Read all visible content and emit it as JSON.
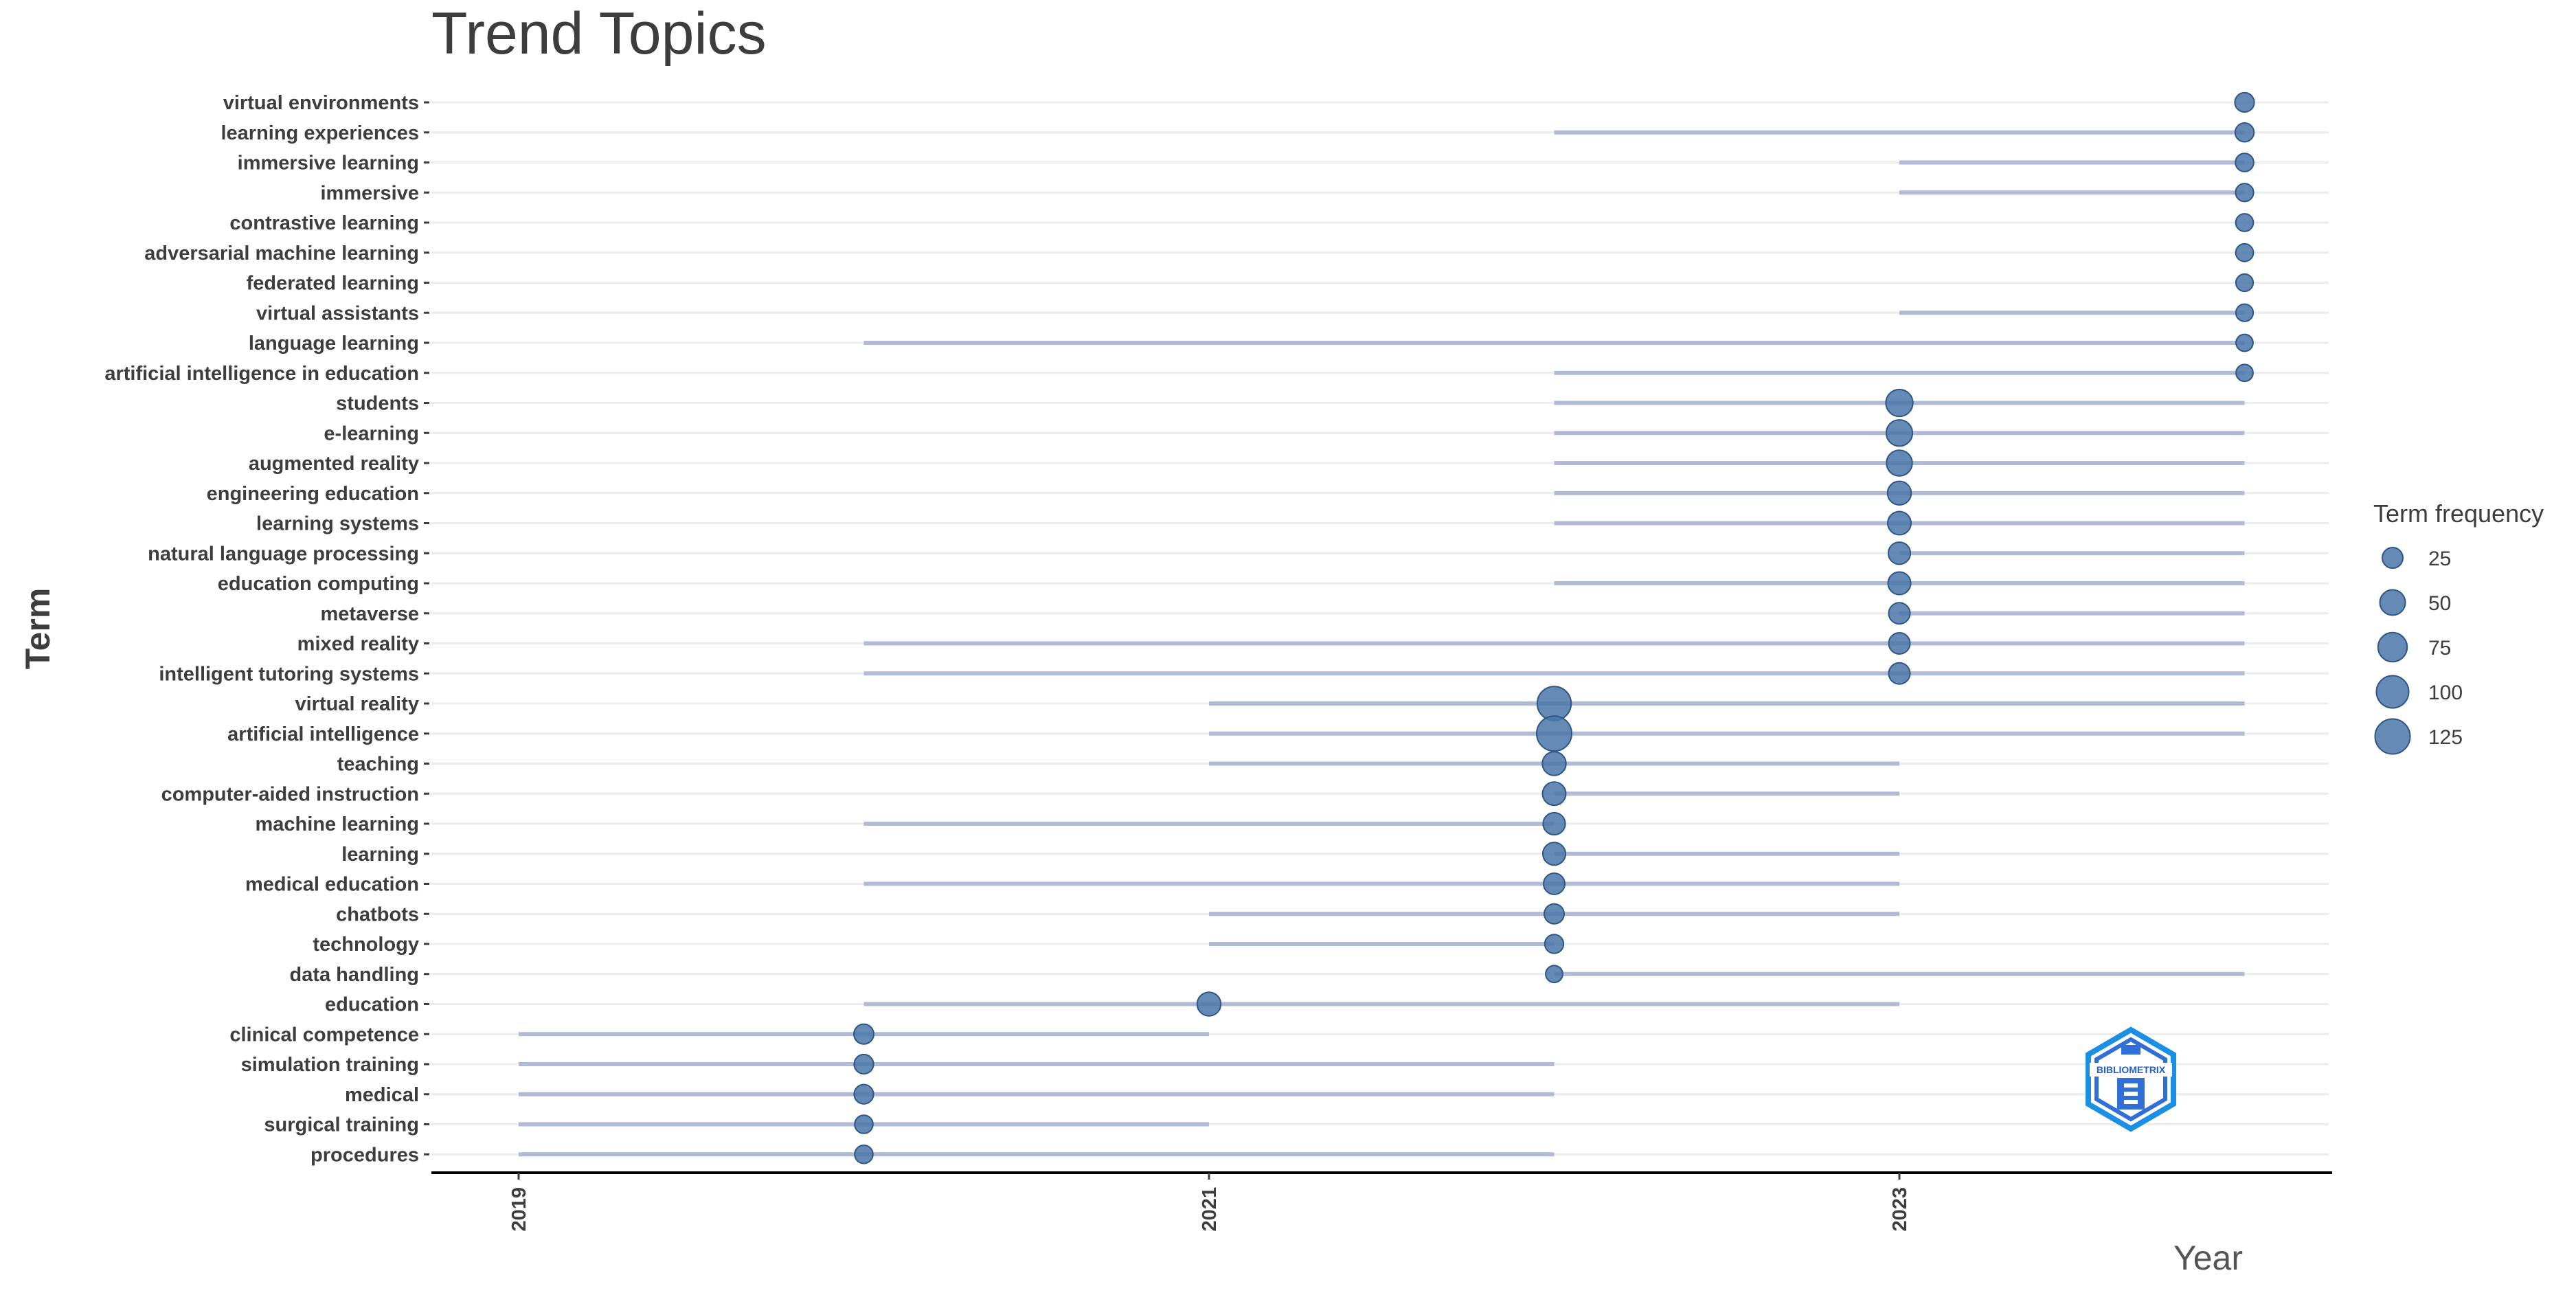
{
  "chart_data": {
    "type": "scatter",
    "title": "Trend Topics",
    "xlabel": "Year",
    "ylabel": "Term",
    "xlim": [
      2019,
      2024.3
    ],
    "x_ticks": [
      "2019",
      "2021",
      "2023"
    ],
    "grid": "horizontal",
    "legend": {
      "title": "Term frequency",
      "position": "right",
      "entries": [
        {
          "label": "25",
          "value": 25
        },
        {
          "label": "50",
          "value": 50
        },
        {
          "label": "75",
          "value": 75
        },
        {
          "label": "100",
          "value": 100
        },
        {
          "label": "125",
          "value": 125
        }
      ]
    },
    "colors": {
      "point": "#4a76a8",
      "point_stroke": "#2f5684",
      "range_line": "#b2bbd6",
      "grid": "#ececec",
      "axis": "#000000"
    },
    "series": [
      {
        "term": "virtual environments",
        "q1": 2024,
        "median": 2024,
        "q3": 2024,
        "freq": 20
      },
      {
        "term": "learning experiences",
        "q1": 2022,
        "median": 2024,
        "q3": 2024,
        "freq": 18
      },
      {
        "term": "immersive learning",
        "q1": 2023,
        "median": 2024,
        "q3": 2024,
        "freq": 16
      },
      {
        "term": "immersive",
        "q1": 2023,
        "median": 2024,
        "q3": 2024,
        "freq": 15
      },
      {
        "term": "contrastive learning",
        "q1": 2024,
        "median": 2024,
        "q3": 2024,
        "freq": 14
      },
      {
        "term": "adversarial machine learning",
        "q1": 2024,
        "median": 2024,
        "q3": 2024,
        "freq": 14
      },
      {
        "term": "federated learning",
        "q1": 2024,
        "median": 2024,
        "q3": 2024,
        "freq": 13
      },
      {
        "term": "virtual assistants",
        "q1": 2023,
        "median": 2024,
        "q3": 2024,
        "freq": 13
      },
      {
        "term": "language learning",
        "q1": 2020,
        "median": 2024,
        "q3": 2024,
        "freq": 12
      },
      {
        "term": "artificial intelligence in education",
        "q1": 2022,
        "median": 2024,
        "q3": 2024,
        "freq": 12
      },
      {
        "term": "students",
        "q1": 2022,
        "median": 2023,
        "q3": 2024,
        "freq": 60
      },
      {
        "term": "e-learning",
        "q1": 2022,
        "median": 2023,
        "q3": 2024,
        "freq": 55
      },
      {
        "term": "augmented reality",
        "q1": 2022,
        "median": 2023,
        "q3": 2024,
        "freq": 52
      },
      {
        "term": "engineering education",
        "q1": 2022,
        "median": 2023,
        "q3": 2024,
        "freq": 40
      },
      {
        "term": "learning systems",
        "q1": 2022,
        "median": 2023,
        "q3": 2024,
        "freq": 38
      },
      {
        "term": "natural language processing",
        "q1": 2023,
        "median": 2023,
        "q3": 2024,
        "freq": 32
      },
      {
        "term": "education computing",
        "q1": 2022,
        "median": 2023,
        "q3": 2024,
        "freq": 35
      },
      {
        "term": "metaverse",
        "q1": 2023,
        "median": 2023,
        "q3": 2024,
        "freq": 28
      },
      {
        "term": "mixed reality",
        "q1": 2020,
        "median": 2023,
        "q3": 2024,
        "freq": 28
      },
      {
        "term": "intelligent tutoring systems",
        "q1": 2020,
        "median": 2023,
        "q3": 2024,
        "freq": 28
      },
      {
        "term": "virtual reality",
        "q1": 2021,
        "median": 2022,
        "q3": 2024,
        "freq": 115
      },
      {
        "term": "artificial intelligence",
        "q1": 2021,
        "median": 2022,
        "q3": 2024,
        "freq": 125
      },
      {
        "term": "teaching",
        "q1": 2021,
        "median": 2022,
        "q3": 2023,
        "freq": 40
      },
      {
        "term": "computer-aided instruction",
        "q1": 2022,
        "median": 2022,
        "q3": 2023,
        "freq": 38
      },
      {
        "term": "machine learning",
        "q1": 2020,
        "median": 2022,
        "q3": 2022,
        "freq": 32
      },
      {
        "term": "learning",
        "q1": 2022,
        "median": 2022,
        "q3": 2023,
        "freq": 35
      },
      {
        "term": "medical education",
        "q1": 2020,
        "median": 2022,
        "q3": 2023,
        "freq": 28
      },
      {
        "term": "chatbots",
        "q1": 2021,
        "median": 2022,
        "q3": 2023,
        "freq": 22
      },
      {
        "term": "technology",
        "q1": 2021,
        "median": 2022,
        "q3": 2022,
        "freq": 18
      },
      {
        "term": "data handling",
        "q1": 2022,
        "median": 2022,
        "q3": 2024,
        "freq": 12
      },
      {
        "term": "education",
        "q1": 2020,
        "median": 2021,
        "q3": 2023,
        "freq": 40
      },
      {
        "term": "clinical competence",
        "q1": 2019,
        "median": 2020,
        "q3": 2021,
        "freq": 22
      },
      {
        "term": "simulation training",
        "q1": 2019,
        "median": 2020,
        "q3": 2022,
        "freq": 20
      },
      {
        "term": "medical",
        "q1": 2019,
        "median": 2020,
        "q3": 2022,
        "freq": 20
      },
      {
        "term": "surgical training",
        "q1": 2019,
        "median": 2020,
        "q3": 2021,
        "freq": 16
      },
      {
        "term": "procedures",
        "q1": 2019,
        "median": 2020,
        "q3": 2022,
        "freq": 16
      }
    ]
  },
  "logo": {
    "text": "BIBLIOMETRIX"
  }
}
